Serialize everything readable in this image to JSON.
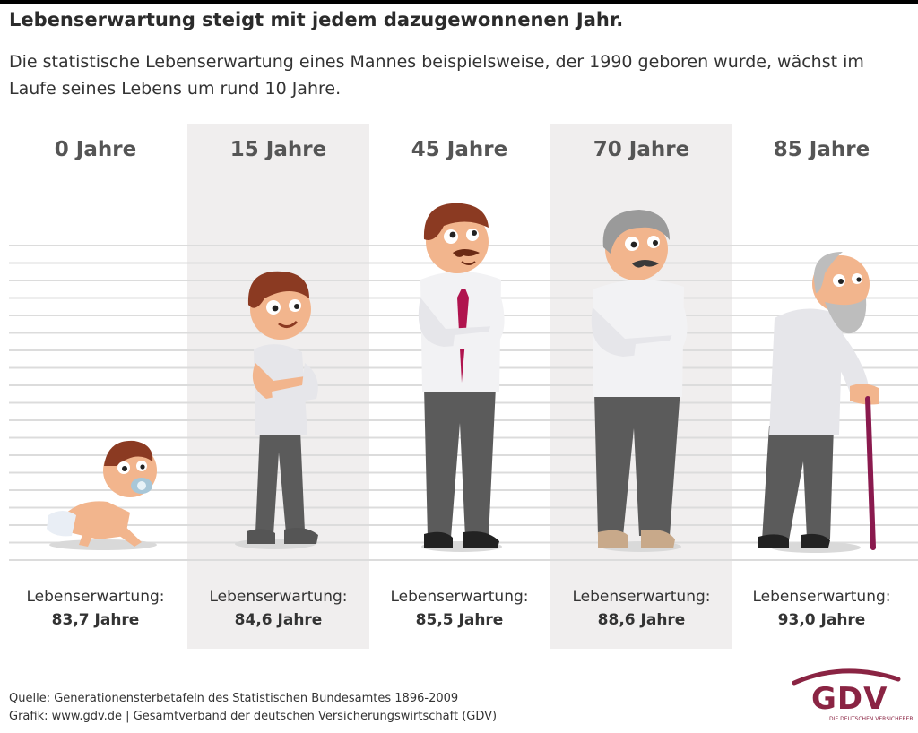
{
  "title": "Lebenserwartung steigt mit jedem dazugewonnenen Jahr.",
  "subtitle": "Die statistische Lebenserwartung eines Mannes beispielsweise, der 1990 geboren wurde, wächst im Laufe seines Lebens um rund 10 Jahre.",
  "columns": [
    {
      "age": "0 Jahre",
      "label": "Lebenserwartung:",
      "value": "83,7 Jahre",
      "figure": "baby-figure"
    },
    {
      "age": "15 Jahre",
      "label": "Lebenserwartung:",
      "value": "84,6 Jahre",
      "figure": "teen-boy-figure"
    },
    {
      "age": "45 Jahre",
      "label": "Lebenserwartung:",
      "value": "85,5 Jahre",
      "figure": "middle-aged-man-figure"
    },
    {
      "age": "70 Jahre",
      "label": "Lebenserwartung:",
      "value": "88,6 Jahre",
      "figure": "senior-man-figure"
    },
    {
      "age": "85 Jahre",
      "label": "Lebenserwartung:",
      "value": "93,0 Jahre",
      "figure": "elderly-man-with-cane-figure"
    }
  ],
  "footer": {
    "source": "Quelle:  Generationensterbetafeln des Statistischen Bundesamtes 1896-2009",
    "credit": "Grafik: www.gdv.de | Gesamtverband der deutschen Versicherungswirtschaft (GDV)"
  },
  "logo": {
    "text": "GDV",
    "tagline": "DIE DEUTSCHEN VERSICHERER"
  },
  "colors": {
    "accent": "#8a2443",
    "column_shade": "#f0eeee",
    "lines": "#dcdcdc",
    "tie": "#b0144e"
  }
}
